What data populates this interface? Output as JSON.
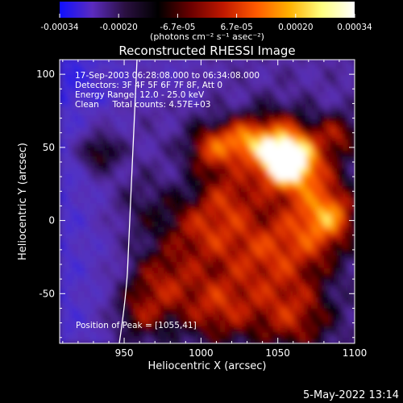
{
  "chart_data": {
    "type": "heatmap",
    "title": "Reconstructed RHESSI Image",
    "xlabel": "Heliocentric X (arcsec)",
    "ylabel": "Heliocentric Y (arcsec)",
    "xlim": [
      908,
      1100
    ],
    "ylim": [
      -84,
      110
    ],
    "x_ticks": [
      950,
      1000,
      1050,
      1100
    ],
    "y_ticks": [
      -50,
      0,
      50,
      100
    ],
    "colorbar": {
      "range": [
        -0.00034,
        0.00034
      ],
      "ticks": [
        "-0.00034",
        "-0.00020",
        "-6.7e-05",
        "6.7e-05",
        "0.00020",
        "0.00034"
      ],
      "unit_label": "(photons cm⁻² s⁻¹ asec⁻²)",
      "colors": [
        "#1010ff",
        "#5b2bbf",
        "#2a1040",
        "#000000",
        "#6a0000",
        "#c01800",
        "#ff5a00",
        "#ffb000",
        "#ffff80",
        "#ffffff"
      ]
    },
    "annotations": [
      "17-Sep-2003 06:28:08.000 to 06:34:08.000",
      "Detectors: 3F 4F 5F 6F 7F 8F, Att 0",
      "Energy Range: 12.0 - 25.0 keV",
      "Clean     Total counts: 4.57E+03"
    ],
    "peak_label": "Position of Peak = [1055,41]",
    "peak": [
      1055,
      41
    ],
    "timestamp": "5-May-2022 13:14"
  }
}
